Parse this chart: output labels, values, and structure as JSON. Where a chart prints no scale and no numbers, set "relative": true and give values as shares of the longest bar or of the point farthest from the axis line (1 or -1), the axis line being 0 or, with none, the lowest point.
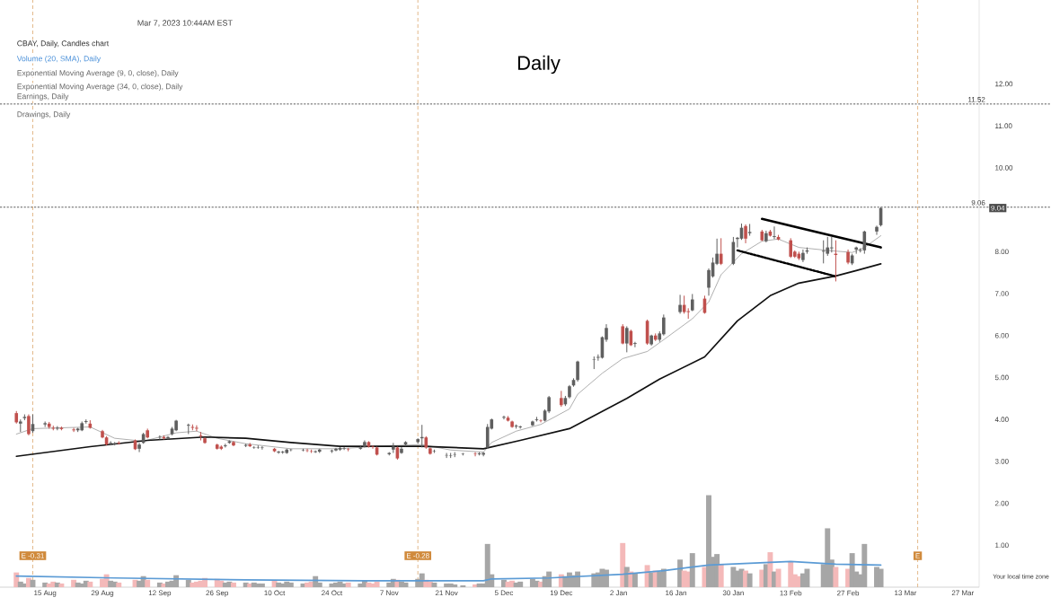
{
  "chart_data": [
    {
      "type": "candlestick",
      "title": "Daily",
      "annotations": [
        "Mar 7, 2023 10:44AM EST",
        "CBAY, Daily, Candles chart",
        "Volume (20, SMA), Daily",
        "Exponential Moving Average (9, 0, close), Daily",
        "Exponential Moving Average (34, 0, close), Daily",
        "Earnings, Daily",
        "Drawings, Daily",
        "Your local time zone",
        {
          "text": "9.04",
          "y": 9.04
        }
      ],
      "x": [
        "2022-08-08",
        "2022-08-09",
        "2022-08-10",
        "2022-08-11",
        "2022-08-12",
        "2022-08-15",
        "2022-08-16",
        "2022-08-17",
        "2022-08-18",
        "2022-08-19",
        "2022-08-22",
        "2022-08-23",
        "2022-08-24",
        "2022-08-25",
        "2022-08-26",
        "2022-08-29",
        "2022-08-30",
        "2022-08-31",
        "2022-09-01",
        "2022-09-02",
        "2022-09-06",
        "2022-09-07",
        "2022-09-08",
        "2022-09-09",
        "2022-09-12",
        "2022-09-13",
        "2022-09-14",
        "2022-09-15",
        "2022-09-16",
        "2022-09-19",
        "2022-09-20",
        "2022-09-21",
        "2022-09-22",
        "2022-09-23",
        "2022-09-26",
        "2022-09-27",
        "2022-09-28",
        "2022-09-29",
        "2022-09-30",
        "2022-10-03",
        "2022-10-04",
        "2022-10-05",
        "2022-10-06",
        "2022-10-07",
        "2022-10-10",
        "2022-10-11",
        "2022-10-12",
        "2022-10-13",
        "2022-10-14",
        "2022-10-17",
        "2022-10-18",
        "2022-10-19",
        "2022-10-20",
        "2022-10-21",
        "2022-10-24",
        "2022-10-25",
        "2022-10-26",
        "2022-10-27",
        "2022-10-28",
        "2022-10-31",
        "2022-11-01",
        "2022-11-02",
        "2022-11-03",
        "2022-11-04",
        "2022-11-07",
        "2022-11-08",
        "2022-11-09",
        "2022-11-10",
        "2022-11-11",
        "2022-11-14",
        "2022-11-15",
        "2022-11-16",
        "2022-11-17",
        "2022-11-18",
        "2022-11-21",
        "2022-11-22",
        "2022-11-23",
        "2022-11-25",
        "2022-11-28",
        "2022-11-29",
        "2022-11-30",
        "2022-12-01",
        "2022-12-02",
        "2022-12-05",
        "2022-12-06",
        "2022-12-07",
        "2022-12-08",
        "2022-12-09",
        "2022-12-12",
        "2022-12-13",
        "2022-12-14",
        "2022-12-15",
        "2022-12-16",
        "2022-12-19",
        "2022-12-20",
        "2022-12-21",
        "2022-12-22",
        "2022-12-23",
        "2022-12-27",
        "2022-12-28",
        "2022-12-29",
        "2022-12-30",
        "2023-01-03",
        "2023-01-04",
        "2023-01-05",
        "2023-01-06",
        "2023-01-09",
        "2023-01-10",
        "2023-01-11",
        "2023-01-12",
        "2023-01-13",
        "2023-01-17",
        "2023-01-18",
        "2023-01-19",
        "2023-01-20",
        "2023-01-23",
        "2023-01-24",
        "2023-01-25",
        "2023-01-26",
        "2023-01-27",
        "2023-01-30",
        "2023-01-31",
        "2023-02-01",
        "2023-02-02",
        "2023-02-03",
        "2023-02-06",
        "2023-02-07",
        "2023-02-08",
        "2023-02-09",
        "2023-02-10",
        "2023-02-13",
        "2023-02-14",
        "2023-02-15",
        "2023-02-16",
        "2023-02-17",
        "2023-02-21",
        "2023-02-22",
        "2023-02-23",
        "2023-02-24",
        "2023-02-27",
        "2023-02-28",
        "2023-03-01",
        "2023-03-02",
        "2023-03-03",
        "2023-03-06",
        "2023-03-07"
      ],
      "ohlc": [
        [
          4.15,
          4.2,
          3.9,
          3.93
        ],
        [
          3.9,
          4.0,
          3.7,
          3.95
        ],
        [
          4.03,
          4.12,
          3.98,
          4.06
        ],
        [
          4.08,
          4.12,
          3.62,
          3.65
        ],
        [
          3.72,
          4.12,
          3.68,
          3.89
        ],
        [
          3.88,
          3.95,
          3.82,
          3.91
        ],
        [
          3.9,
          3.94,
          3.78,
          3.82
        ],
        [
          3.8,
          3.85,
          3.74,
          3.78
        ],
        [
          3.78,
          3.84,
          3.74,
          3.8
        ],
        [
          3.8,
          3.83,
          3.74,
          3.77
        ],
        [
          3.76,
          3.8,
          3.7,
          3.74
        ],
        [
          3.74,
          3.8,
          3.7,
          3.78
        ],
        [
          3.74,
          3.95,
          3.72,
          3.91
        ],
        [
          3.94,
          4.0,
          3.9,
          3.96
        ],
        [
          3.9,
          3.98,
          3.78,
          3.8
        ],
        [
          3.72,
          3.75,
          3.55,
          3.57
        ],
        [
          3.57,
          3.6,
          3.38,
          3.4
        ],
        [
          3.42,
          3.48,
          3.38,
          3.44
        ],
        [
          3.41,
          3.46,
          3.38,
          3.43
        ],
        [
          3.44,
          3.48,
          3.4,
          3.42
        ],
        [
          3.5,
          3.52,
          3.27,
          3.29
        ],
        [
          3.3,
          3.44,
          3.22,
          3.4
        ],
        [
          3.44,
          3.68,
          3.42,
          3.65
        ],
        [
          3.74,
          3.78,
          3.55,
          3.57
        ],
        [
          3.57,
          3.62,
          3.52,
          3.58
        ],
        [
          3.58,
          3.62,
          3.52,
          3.55
        ],
        [
          3.55,
          3.6,
          3.52,
          3.58
        ],
        [
          3.65,
          3.82,
          3.62,
          3.78
        ],
        [
          3.74,
          3.99,
          3.72,
          3.97
        ],
        [
          3.85,
          3.9,
          3.65,
          3.87
        ],
        [
          3.82,
          3.88,
          3.74,
          3.8
        ],
        [
          3.8,
          3.86,
          3.72,
          3.78
        ],
        [
          3.62,
          3.7,
          3.5,
          3.6
        ],
        [
          3.55,
          3.58,
          3.42,
          3.44
        ],
        [
          3.4,
          3.42,
          3.28,
          3.3
        ],
        [
          3.35,
          3.38,
          3.27,
          3.3
        ],
        [
          3.36,
          3.42,
          3.33,
          3.38
        ],
        [
          3.44,
          3.5,
          3.42,
          3.48
        ],
        [
          3.46,
          3.48,
          3.36,
          3.38
        ],
        [
          3.38,
          3.42,
          3.34,
          3.38
        ],
        [
          3.4,
          3.44,
          3.34,
          3.36
        ],
        [
          3.33,
          3.36,
          3.3,
          3.34
        ],
        [
          3.33,
          3.38,
          3.3,
          3.34
        ],
        [
          3.32,
          3.36,
          3.28,
          3.33
        ],
        [
          3.3,
          3.32,
          3.22,
          3.24
        ],
        [
          3.22,
          3.25,
          3.18,
          3.22
        ],
        [
          3.21,
          3.25,
          3.18,
          3.23
        ],
        [
          3.2,
          3.3,
          3.18,
          3.28
        ],
        [
          3.27,
          3.3,
          3.24,
          3.28
        ],
        [
          3.26,
          3.3,
          3.24,
          3.27
        ],
        [
          3.26,
          3.3,
          3.22,
          3.25
        ],
        [
          3.24,
          3.28,
          3.2,
          3.23
        ],
        [
          3.22,
          3.26,
          3.2,
          3.24
        ],
        [
          3.23,
          3.3,
          3.2,
          3.28
        ],
        [
          3.24,
          3.28,
          3.2,
          3.26
        ],
        [
          3.26,
          3.32,
          3.24,
          3.3
        ],
        [
          3.28,
          3.34,
          3.25,
          3.32
        ],
        [
          3.3,
          3.34,
          3.27,
          3.31
        ],
        [
          3.29,
          3.32,
          3.24,
          3.28
        ],
        [
          3.3,
          3.36,
          3.28,
          3.33
        ],
        [
          3.35,
          3.5,
          3.33,
          3.46
        ],
        [
          3.46,
          3.48,
          3.33,
          3.35
        ],
        [
          3.36,
          3.38,
          3.3,
          3.35
        ],
        [
          3.33,
          3.35,
          3.14,
          3.16
        ],
        [
          3.17,
          3.22,
          3.14,
          3.2
        ],
        [
          3.28,
          3.44,
          3.2,
          3.35
        ],
        [
          3.33,
          3.35,
          3.04,
          3.07
        ],
        [
          3.2,
          3.34,
          3.18,
          3.3
        ],
        [
          3.4,
          3.48,
          3.36,
          3.46
        ],
        [
          3.46,
          3.55,
          3.42,
          3.53
        ],
        [
          3.55,
          3.87,
          3.33,
          3.58
        ],
        [
          3.57,
          3.6,
          3.3,
          3.33
        ],
        [
          3.31,
          3.33,
          3.16,
          3.18
        ],
        [
          3.24,
          3.28,
          3.2,
          3.25
        ],
        [
          3.14,
          3.2,
          3.08,
          3.15
        ],
        [
          3.13,
          3.2,
          3.08,
          3.14
        ],
        [
          3.16,
          3.22,
          3.1,
          3.17
        ],
        [
          3.17,
          3.2,
          3.14,
          3.18
        ],
        [
          3.18,
          3.22,
          3.12,
          3.17
        ],
        [
          3.17,
          3.22,
          3.14,
          3.19
        ],
        [
          3.16,
          3.22,
          3.12,
          3.2
        ],
        [
          3.33,
          3.89,
          3.3,
          3.82
        ],
        [
          3.78,
          4.02,
          3.76,
          4.0
        ],
        [
          4.04,
          4.09,
          4.0,
          4.06
        ],
        [
          4.04,
          4.08,
          3.95,
          3.97
        ],
        [
          3.95,
          3.97,
          3.8,
          3.82
        ],
        [
          3.83,
          3.88,
          3.78,
          3.85
        ],
        [
          3.81,
          3.85,
          3.78,
          3.83
        ],
        [
          3.86,
          3.97,
          3.84,
          3.95
        ],
        [
          3.98,
          4.06,
          3.95,
          4.0
        ],
        [
          3.97,
          4.0,
          3.93,
          3.96
        ],
        [
          3.97,
          4.24,
          3.95,
          4.21
        ],
        [
          4.19,
          4.56,
          4.15,
          4.53
        ],
        [
          4.51,
          4.68,
          4.3,
          4.34
        ],
        [
          4.36,
          4.56,
          4.32,
          4.51
        ],
        [
          4.53,
          4.82,
          4.5,
          4.79
        ],
        [
          4.81,
          4.98,
          4.78,
          4.94
        ],
        [
          4.94,
          5.4,
          4.9,
          5.38
        ],
        [
          5.42,
          5.5,
          5.2,
          5.43
        ],
        [
          5.47,
          5.55,
          5.4,
          5.49
        ],
        [
          5.47,
          5.98,
          5.45,
          5.96
        ],
        [
          5.9,
          6.27,
          5.85,
          6.18
        ],
        [
          6.22,
          6.27,
          5.79,
          5.81
        ],
        [
          5.81,
          6.22,
          5.6,
          6.18
        ],
        [
          6.11,
          6.14,
          5.75,
          5.77
        ],
        [
          5.8,
          5.85,
          5.72,
          5.82
        ],
        [
          6.35,
          6.38,
          5.78,
          5.81
        ],
        [
          5.79,
          6.02,
          5.76,
          6.0
        ],
        [
          6.0,
          6.05,
          5.87,
          5.9
        ],
        [
          5.9,
          6.1,
          5.85,
          6.05
        ],
        [
          6.03,
          6.5,
          6.0,
          6.43
        ],
        [
          6.56,
          6.97,
          6.52,
          6.73
        ],
        [
          6.73,
          6.95,
          6.52,
          6.56
        ],
        [
          6.58,
          6.65,
          6.4,
          6.56
        ],
        [
          6.6,
          6.99,
          6.58,
          6.86
        ],
        [
          6.88,
          6.95,
          6.52,
          6.54
        ],
        [
          7.14,
          7.6,
          6.95,
          7.56
        ],
        [
          7.41,
          7.86,
          7.38,
          7.74
        ],
        [
          7.71,
          8.31,
          7.68,
          7.95
        ],
        [
          7.95,
          8.32,
          7.68,
          7.71
        ],
        [
          7.71,
          8.35,
          7.68,
          8.23
        ],
        [
          8.3,
          8.35,
          8.1,
          8.33
        ],
        [
          8.31,
          8.67,
          8.28,
          8.57
        ],
        [
          8.61,
          8.65,
          8.2,
          8.31
        ],
        [
          8.44,
          8.66,
          8.38,
          8.47
        ],
        [
          8.48,
          8.52,
          8.25,
          8.27
        ],
        [
          8.25,
          8.5,
          8.22,
          8.44
        ],
        [
          8.48,
          8.52,
          8.36,
          8.38
        ],
        [
          8.35,
          8.6,
          8.3,
          8.37
        ],
        [
          8.35,
          8.4,
          8.27,
          8.29
        ],
        [
          8.27,
          8.32,
          7.85,
          7.88
        ],
        [
          8.0,
          8.03,
          7.85,
          7.88
        ],
        [
          7.95,
          8.0,
          7.8,
          7.84
        ],
        [
          7.8,
          8.05,
          7.75,
          7.97
        ],
        [
          8.0,
          8.1,
          7.95,
          8.03
        ],
        [
          8.0,
          8.27,
          7.72,
          8.02
        ],
        [
          7.95,
          8.35,
          7.9,
          8.1
        ],
        [
          8.08,
          8.35,
          7.98,
          8.1
        ],
        [
          7.95,
          8.27,
          7.29,
          7.92
        ],
        [
          7.99,
          8.05,
          7.7,
          7.74
        ],
        [
          7.72,
          7.95,
          7.68,
          7.91
        ],
        [
          8.05,
          8.12,
          7.95,
          8.1
        ],
        [
          8.02,
          8.08,
          7.98,
          8.04
        ],
        [
          8.03,
          8.5,
          7.95,
          8.48
        ],
        [
          8.48,
          8.62,
          8.4,
          8.59
        ],
        [
          8.63,
          9.06,
          8.6,
          9.04
        ]
      ],
      "colors": [
        "#c0504d",
        "#5f5f5f",
        "#5f5f5f",
        "#c0504d",
        "#5f5f5f",
        "#5f5f5f",
        "#c0504d",
        "#c0504d",
        "#5f5f5f",
        "#c0504d",
        "#c0504d",
        "#5f5f5f",
        "#5f5f5f",
        "#5f5f5f",
        "#c0504d",
        "#c0504d",
        "#c0504d",
        "#5f5f5f",
        "#5f5f5f",
        "#c0504d",
        "#c0504d",
        "#5f5f5f",
        "#5f5f5f",
        "#c0504d",
        "#5f5f5f",
        "#c0504d",
        "#5f5f5f",
        "#5f5f5f",
        "#5f5f5f",
        "#5f5f5f",
        "#c0504d",
        "#c0504d",
        "#c0504d",
        "#c0504d",
        "#c0504d",
        "#c0504d",
        "#5f5f5f",
        "#5f5f5f",
        "#c0504d",
        "#5f5f5f",
        "#c0504d",
        "#5f5f5f",
        "#5f5f5f",
        "#5f5f5f",
        "#c0504d",
        "#5f5f5f",
        "#5f5f5f",
        "#5f5f5f",
        "#5f5f5f",
        "#5f5f5f",
        "#c0504d",
        "#c0504d",
        "#5f5f5f",
        "#5f5f5f",
        "#5f5f5f",
        "#5f5f5f",
        "#5f5f5f",
        "#5f5f5f",
        "#c0504d",
        "#5f5f5f",
        "#5f5f5f",
        "#c0504d",
        "#c0504d",
        "#c0504d",
        "#5f5f5f",
        "#5f5f5f",
        "#c0504d",
        "#5f5f5f",
        "#5f5f5f",
        "#5f5f5f",
        "#5f5f5f",
        "#c0504d",
        "#c0504d",
        "#5f5f5f",
        "#5f5f5f",
        "#5f5f5f",
        "#5f5f5f",
        "#5f5f5f",
        "#c0504d",
        "#5f5f5f",
        "#5f5f5f",
        "#5f5f5f",
        "#5f5f5f",
        "#5f5f5f",
        "#c0504d",
        "#c0504d",
        "#5f5f5f",
        "#5f5f5f",
        "#5f5f5f",
        "#5f5f5f",
        "#c0504d",
        "#5f5f5f",
        "#5f5f5f",
        "#c0504d",
        "#5f5f5f",
        "#5f5f5f",
        "#5f5f5f",
        "#5f5f5f",
        "#5f5f5f",
        "#5f5f5f",
        "#5f5f5f",
        "#5f5f5f",
        "#c0504d",
        "#5f5f5f",
        "#c0504d",
        "#5f5f5f",
        "#c0504d",
        "#5f5f5f",
        "#c0504d",
        "#5f5f5f",
        "#5f5f5f",
        "#5f5f5f",
        "#c0504d",
        "#c0504d",
        "#5f5f5f",
        "#c0504d",
        "#5f5f5f",
        "#5f5f5f",
        "#5f5f5f",
        "#c0504d",
        "#5f5f5f",
        "#5f5f5f",
        "#5f5f5f",
        "#c0504d",
        "#5f5f5f",
        "#c0504d",
        "#5f5f5f",
        "#c0504d",
        "#5f5f5f",
        "#c0504d",
        "#c0504d",
        "#c0504d",
        "#c0504d",
        "#5f5f5f",
        "#5f5f5f",
        "#5f5f5f",
        "#5f5f5f",
        "#5f5f5f",
        "#c0504d",
        "#c0504d",
        "#5f5f5f",
        "#5f5f5f",
        "#5f5f5f",
        "#5f5f5f",
        "#5f5f5f",
        "#5f5f5f"
      ],
      "series": [
        {
          "type": "line",
          "color": "#8c8c8c",
          "x": [
            "2022-08-08",
            "2022-08-12",
            "2022-08-26",
            "2022-09-01",
            "2022-09-08",
            "2022-09-16",
            "2022-09-21",
            "2022-09-26",
            "2022-10-03",
            "2022-10-14",
            "2022-10-26",
            "2022-11-04",
            "2022-11-15",
            "2022-11-22",
            "2022-11-30",
            "2022-12-02",
            "2022-12-08",
            "2022-12-14",
            "2022-12-21",
            "2022-12-23",
            "2022-12-29",
            "2023-01-03",
            "2023-01-09",
            "2023-01-13",
            "2023-01-20",
            "2023-01-24",
            "2023-01-27",
            "2023-02-01",
            "2023-02-06",
            "2023-02-10",
            "2023-02-15",
            "2023-02-22",
            "2023-02-28",
            "2023-03-03",
            "2023-03-07"
          ],
          "values": [
            3.65,
            3.78,
            3.82,
            3.55,
            3.48,
            3.68,
            3.72,
            3.55,
            3.42,
            3.3,
            3.3,
            3.36,
            3.4,
            3.27,
            3.22,
            3.45,
            3.72,
            3.88,
            4.25,
            4.6,
            5.1,
            5.45,
            5.62,
            5.9,
            6.4,
            6.8,
            7.45,
            7.95,
            8.25,
            8.3,
            8.1,
            8.03,
            7.98,
            8.1,
            8.38
          ]
        },
        {
          "type": "line",
          "color": "#111111",
          "x": [
            "2022-08-08",
            "2022-08-26",
            "2022-09-09",
            "2022-09-23",
            "2022-10-03",
            "2022-10-14",
            "2022-10-26",
            "2022-11-15",
            "2022-11-30",
            "2022-12-09",
            "2022-12-21",
            "2023-01-04",
            "2023-01-12",
            "2023-01-23",
            "2023-01-31",
            "2023-02-08",
            "2023-02-15",
            "2023-02-24",
            "2023-03-01",
            "2023-03-07"
          ],
          "values": [
            3.12,
            3.35,
            3.5,
            3.58,
            3.55,
            3.45,
            3.36,
            3.36,
            3.3,
            3.5,
            3.78,
            4.5,
            4.96,
            5.49,
            6.35,
            6.95,
            7.25,
            7.42,
            7.55,
            7.71
          ]
        },
        {
          "type": "line",
          "color": "#000000",
          "line_style": "solid",
          "x": [
            "2023-02-06",
            "2023-03-07"
          ],
          "values": [
            8.78,
            8.1
          ]
        },
        {
          "type": "line",
          "color": "#000000",
          "line_style": "dotted",
          "x": [
            "2023-01-31",
            "2023-02-24"
          ],
          "values": [
            8.03,
            7.41
          ]
        }
      ],
      "xlim": [
        "2022-08-04",
        "2023-03-31"
      ],
      "ylim": [
        0,
        14
      ],
      "xticks": [
        {
          "value": "2022-08-15",
          "label": "15 Aug"
        },
        {
          "value": "2022-08-29",
          "label": "29 Aug"
        },
        {
          "value": "2022-09-12",
          "label": "12 Sep"
        },
        {
          "value": "2022-09-26",
          "label": "26 Sep"
        },
        {
          "value": "2022-10-10",
          "label": "10 Oct"
        },
        {
          "value": "2022-10-24",
          "label": "24 Oct"
        },
        {
          "value": "2022-11-07",
          "label": "7 Nov"
        },
        {
          "value": "2022-11-21",
          "label": "21 Nov"
        },
        {
          "value": "2022-12-05",
          "label": "5 Dec"
        },
        {
          "value": "2022-12-19",
          "label": "19 Dec"
        },
        {
          "value": "2023-01-02",
          "label": "2 Jan"
        },
        {
          "value": "2023-01-16",
          "label": "16 Jan"
        },
        {
          "value": "2023-01-30",
          "label": "30 Jan"
        },
        {
          "value": "2023-02-13",
          "label": "13 Feb"
        },
        {
          "value": "2023-02-27",
          "label": "27 Feb"
        },
        {
          "value": "2023-03-13",
          "label": "13 Mar"
        },
        {
          "value": "2023-03-27",
          "label": "27 Mar"
        }
      ],
      "yticks": [
        {
          "value": 1,
          "label": "1.00"
        },
        {
          "value": 2,
          "label": "2.00"
        },
        {
          "value": 3,
          "label": "3.00"
        },
        {
          "value": 4,
          "label": "4.00"
        },
        {
          "value": 5,
          "label": "5.00"
        },
        {
          "value": 6,
          "label": "6.00"
        },
        {
          "value": 7,
          "label": "7.00"
        },
        {
          "value": 8,
          "label": "8.00"
        },
        {
          "value": 10,
          "label": "10.00"
        },
        {
          "value": 11,
          "label": "11.00"
        },
        {
          "value": 12,
          "label": "12.00"
        }
      ],
      "ref_lines": [
        {
          "axis": "y",
          "value": 11.52,
          "label": "11.52",
          "color": "#333333",
          "line_style": "dotted"
        },
        {
          "axis": "y",
          "value": 9.06,
          "label": "9.06",
          "color": "#333333",
          "line_style": "dotted"
        },
        {
          "axis": "x",
          "value": "2022-08-12",
          "label": "E -0.31",
          "color": "#d08a3c",
          "line_style": "dashed"
        },
        {
          "axis": "x",
          "value": "2022-11-14",
          "label": "E -0.28",
          "color": "#d08a3c",
          "line_style": "dashed"
        },
        {
          "axis": "x",
          "value": "2023-03-16",
          "label": "E",
          "color": "#d08a3c",
          "line_style": "dashed"
        }
      ]
    },
    {
      "type": "bar",
      "relative": true,
      "xlim": [
        "2022-08-04",
        "2023-03-31"
      ],
      "series": [
        {
          "type": "bar",
          "colors": [
            "#f4b9b9",
            "#a6a6a6",
            "#a6a6a6",
            "#f4b9b9",
            "#a6a6a6",
            "#a6a6a6",
            "#f4b9b9",
            "#f4b9b9",
            "#a6a6a6",
            "#f4b9b9",
            "#f4b9b9",
            "#a6a6a6",
            "#a6a6a6",
            "#a6a6a6",
            "#f4b9b9",
            "#f4b9b9",
            "#f4b9b9",
            "#a6a6a6",
            "#a6a6a6",
            "#f4b9b9",
            "#f4b9b9",
            "#a6a6a6",
            "#a6a6a6",
            "#f4b9b9",
            "#a6a6a6",
            "#f4b9b9",
            "#a6a6a6",
            "#a6a6a6",
            "#a6a6a6",
            "#a6a6a6",
            "#f4b9b9",
            "#f4b9b9",
            "#f4b9b9",
            "#f4b9b9",
            "#f4b9b9",
            "#f4b9b9",
            "#a6a6a6",
            "#a6a6a6",
            "#f4b9b9",
            "#a6a6a6",
            "#f4b9b9",
            "#a6a6a6",
            "#a6a6a6",
            "#a6a6a6",
            "#f4b9b9",
            "#a6a6a6",
            "#a6a6a6",
            "#a6a6a6",
            "#a6a6a6",
            "#a6a6a6",
            "#f4b9b9",
            "#f4b9b9",
            "#a6a6a6",
            "#a6a6a6",
            "#a6a6a6",
            "#a6a6a6",
            "#a6a6a6",
            "#a6a6a6",
            "#f4b9b9",
            "#a6a6a6",
            "#a6a6a6",
            "#f4b9b9",
            "#f4b9b9",
            "#f4b9b9",
            "#a6a6a6",
            "#a6a6a6",
            "#f4b9b9",
            "#a6a6a6",
            "#a6a6a6",
            "#a6a6a6",
            "#a6a6a6",
            "#f4b9b9",
            "#f4b9b9",
            "#a6a6a6",
            "#a6a6a6",
            "#a6a6a6",
            "#a6a6a6",
            "#a6a6a6",
            "#f4b9b9",
            "#a6a6a6",
            "#a6a6a6",
            "#a6a6a6",
            "#a6a6a6",
            "#a6a6a6",
            "#f4b9b9",
            "#f4b9b9",
            "#a6a6a6",
            "#a6a6a6",
            "#a6a6a6",
            "#a6a6a6",
            "#f4b9b9",
            "#a6a6a6",
            "#a6a6a6",
            "#f4b9b9",
            "#a6a6a6",
            "#a6a6a6",
            "#a6a6a6",
            "#a6a6a6",
            "#a6a6a6",
            "#a6a6a6",
            "#a6a6a6",
            "#a6a6a6",
            "#f4b9b9",
            "#a6a6a6",
            "#f4b9b9",
            "#a6a6a6",
            "#f4b9b9",
            "#a6a6a6",
            "#f4b9b9",
            "#a6a6a6",
            "#a6a6a6",
            "#a6a6a6",
            "#f4b9b9",
            "#f4b9b9",
            "#a6a6a6",
            "#f4b9b9",
            "#a6a6a6",
            "#a6a6a6",
            "#a6a6a6",
            "#f4b9b9",
            "#a6a6a6",
            "#a6a6a6",
            "#a6a6a6",
            "#f4b9b9",
            "#a6a6a6",
            "#f4b9b9",
            "#a6a6a6",
            "#f4b9b9",
            "#a6a6a6",
            "#f4b9b9",
            "#f4b9b9",
            "#f4b9b9",
            "#f4b9b9",
            "#a6a6a6",
            "#a6a6a6",
            "#a6a6a6",
            "#a6a6a6",
            "#a6a6a6",
            "#f4b9b9",
            "#f4b9b9",
            "#a6a6a6",
            "#a6a6a6",
            "#a6a6a6",
            "#a6a6a6",
            "#a6a6a6",
            "#a6a6a6"
          ],
          "x": [
            "2022-08-08",
            "2022-08-09",
            "2022-08-10",
            "2022-08-11",
            "2022-08-12",
            "2022-08-15",
            "2022-08-16",
            "2022-08-17",
            "2022-08-18",
            "2022-08-19",
            "2022-08-22",
            "2022-08-23",
            "2022-08-24",
            "2022-08-25",
            "2022-08-26",
            "2022-08-29",
            "2022-08-30",
            "2022-08-31",
            "2022-09-01",
            "2022-09-02",
            "2022-09-06",
            "2022-09-07",
            "2022-09-08",
            "2022-09-09",
            "2022-09-12",
            "2022-09-13",
            "2022-09-14",
            "2022-09-15",
            "2022-09-16",
            "2022-09-19",
            "2022-09-20",
            "2022-09-21",
            "2022-09-22",
            "2022-09-23",
            "2022-09-26",
            "2022-09-27",
            "2022-09-28",
            "2022-09-29",
            "2022-09-30",
            "2022-10-03",
            "2022-10-04",
            "2022-10-05",
            "2022-10-06",
            "2022-10-07",
            "2022-10-10",
            "2022-10-11",
            "2022-10-12",
            "2022-10-13",
            "2022-10-14",
            "2022-10-17",
            "2022-10-18",
            "2022-10-19",
            "2022-10-20",
            "2022-10-21",
            "2022-10-24",
            "2022-10-25",
            "2022-10-26",
            "2022-10-27",
            "2022-10-28",
            "2022-10-31",
            "2022-11-01",
            "2022-11-02",
            "2022-11-03",
            "2022-11-04",
            "2022-11-07",
            "2022-11-08",
            "2022-11-09",
            "2022-11-10",
            "2022-11-11",
            "2022-11-14",
            "2022-11-15",
            "2022-11-16",
            "2022-11-17",
            "2022-11-18",
            "2022-11-21",
            "2022-11-22",
            "2022-11-23",
            "2022-11-25",
            "2022-11-28",
            "2022-11-29",
            "2022-11-30",
            "2022-12-01",
            "2022-12-02",
            "2022-12-05",
            "2022-12-06",
            "2022-12-07",
            "2022-12-08",
            "2022-12-09",
            "2022-12-12",
            "2022-12-13",
            "2022-12-14",
            "2022-12-15",
            "2022-12-16",
            "2022-12-19",
            "2022-12-20",
            "2022-12-21",
            "2022-12-22",
            "2022-12-23",
            "2022-12-27",
            "2022-12-28",
            "2022-12-29",
            "2022-12-30",
            "2023-01-03",
            "2023-01-04",
            "2023-01-05",
            "2023-01-06",
            "2023-01-09",
            "2023-01-10",
            "2023-01-11",
            "2023-01-12",
            "2023-01-13",
            "2023-01-17",
            "2023-01-18",
            "2023-01-19",
            "2023-01-20",
            "2023-01-23",
            "2023-01-24",
            "2023-01-25",
            "2023-01-26",
            "2023-01-27",
            "2023-01-30",
            "2023-01-31",
            "2023-02-01",
            "2023-02-02",
            "2023-02-03",
            "2023-02-06",
            "2023-02-07",
            "2023-02-08",
            "2023-02-09",
            "2023-02-10",
            "2023-02-13",
            "2023-02-14",
            "2023-02-15",
            "2023-02-16",
            "2023-02-17",
            "2023-02-21",
            "2023-02-22",
            "2023-02-23",
            "2023-02-24",
            "2023-02-27",
            "2023-02-28",
            "2023-03-01",
            "2023-03-02",
            "2023-03-03",
            "2023-03-06",
            "2023-03-07"
          ],
          "values": [
            0.16,
            0.06,
            0.04,
            0.1,
            0.08,
            0.05,
            0.04,
            0.06,
            0.05,
            0.04,
            0.08,
            0.05,
            0.04,
            0.07,
            0.06,
            0.09,
            0.14,
            0.07,
            0.06,
            0.05,
            0.08,
            0.07,
            0.12,
            0.08,
            0.05,
            0.04,
            0.06,
            0.07,
            0.13,
            0.08,
            0.05,
            0.06,
            0.07,
            0.1,
            0.09,
            0.07,
            0.05,
            0.06,
            0.05,
            0.05,
            0.04,
            0.05,
            0.04,
            0.04,
            0.07,
            0.05,
            0.04,
            0.06,
            0.05,
            0.04,
            0.05,
            0.06,
            0.12,
            0.05,
            0.04,
            0.05,
            0.06,
            0.04,
            0.05,
            0.04,
            0.07,
            0.05,
            0.04,
            0.06,
            0.05,
            0.09,
            0.08,
            0.06,
            0.05,
            0.09,
            0.15,
            0.08,
            0.06,
            0.05,
            0.04,
            0.04,
            0.03,
            0.02,
            0.03,
            0.04,
            0.04,
            0.47,
            0.14,
            0.08,
            0.06,
            0.07,
            0.05,
            0.06,
            0.09,
            0.07,
            0.06,
            0.12,
            0.17,
            0.14,
            0.12,
            0.16,
            0.13,
            0.17,
            0.15,
            0.16,
            0.2,
            0.19,
            0.48,
            0.22,
            0.17,
            0.15,
            0.24,
            0.16,
            0.18,
            0.17,
            0.2,
            0.3,
            0.18,
            0.17,
            0.37,
            0.22,
            1,
            0.33,
            0.36,
            0.25,
            0.22,
            0.18,
            0.2,
            0.18,
            0.15,
            0.19,
            0.25,
            0.38,
            0.17,
            0.2,
            0.28,
            0.14,
            0.12,
            0.15,
            0.2,
            0.25,
            0.64,
            0.3,
            0.22,
            0.2,
            0.37,
            0.17,
            0.14,
            0.47,
            0.22,
            0.2
          ]
        },
        {
          "type": "line",
          "color": "#5b9bd5",
          "x": [
            "2022-08-08",
            "2022-09-01",
            "2022-10-03",
            "2022-11-01",
            "2022-11-30",
            "2022-12-02",
            "2022-12-16",
            "2023-01-03",
            "2023-01-13",
            "2023-01-24",
            "2023-02-03",
            "2023-02-13",
            "2023-02-24",
            "2023-03-07"
          ],
          "values": [
            0.12,
            0.1,
            0.08,
            0.07,
            0.07,
            0.09,
            0.1,
            0.14,
            0.18,
            0.24,
            0.26,
            0.28,
            0.25,
            0.24
          ]
        }
      ]
    }
  ]
}
